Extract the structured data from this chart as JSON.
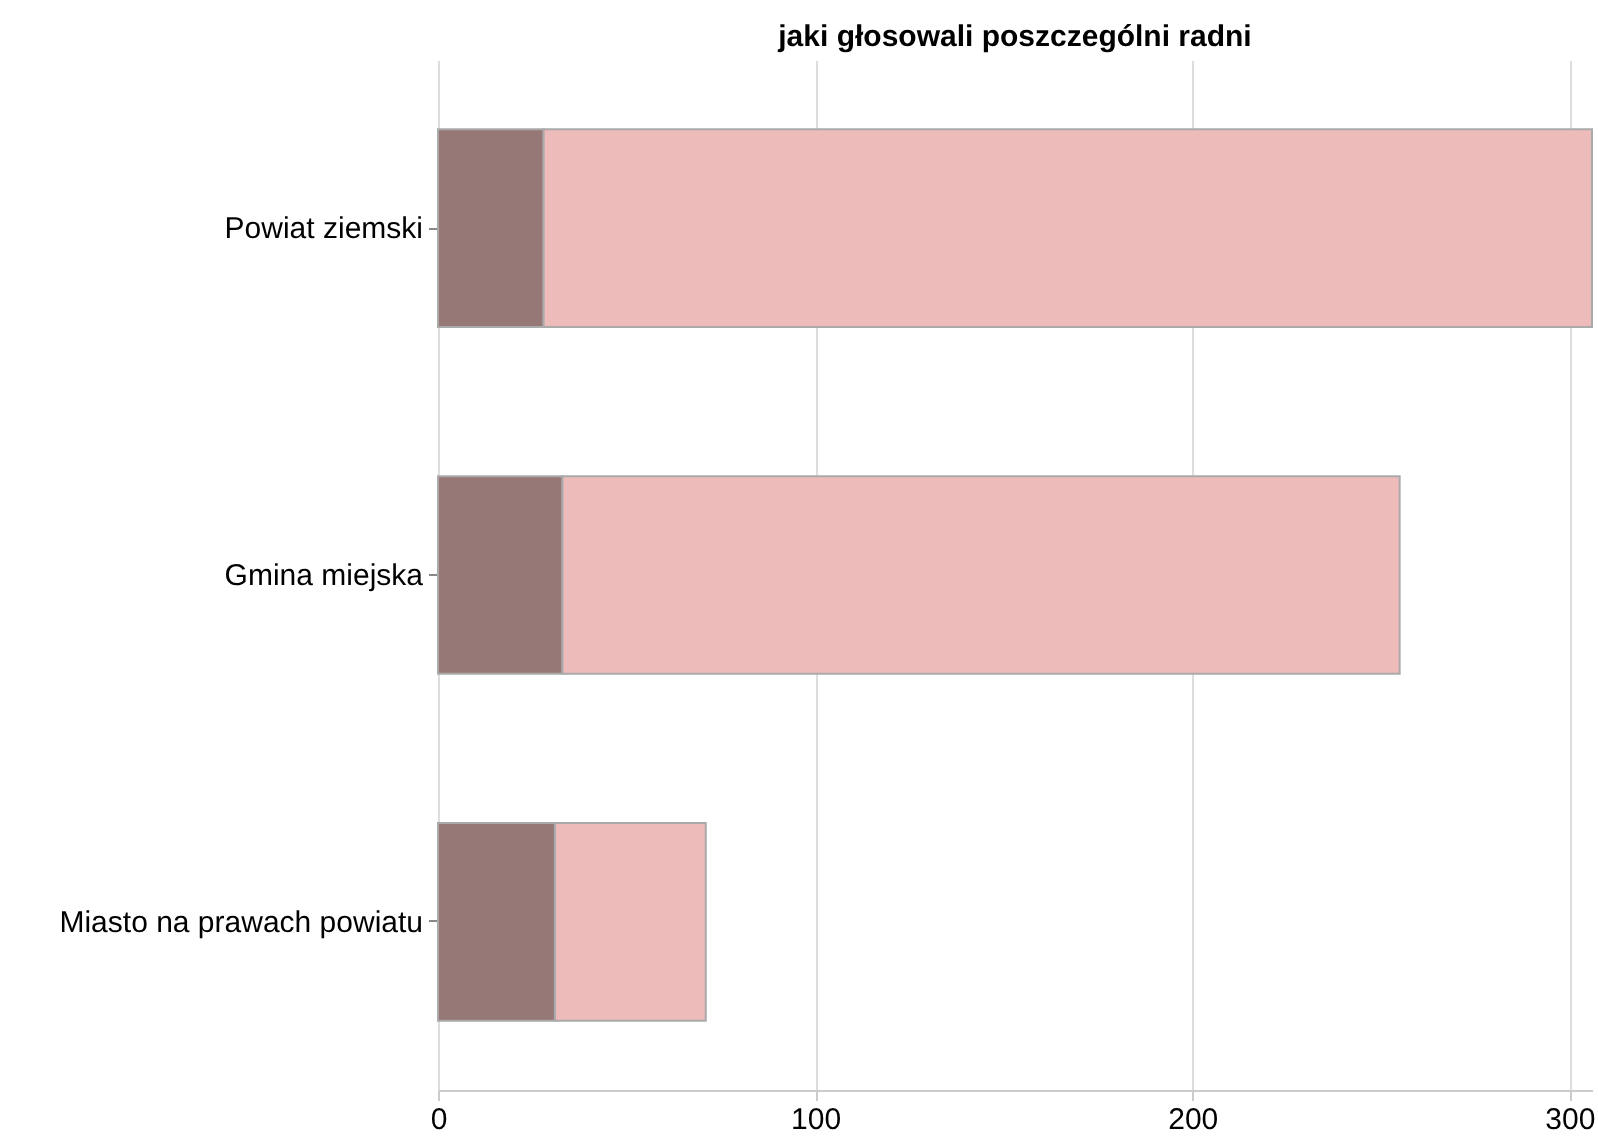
{
  "chart_data": {
    "type": "bar",
    "orientation": "horizontal",
    "stacked": true,
    "title": "jaki głosowali poszczególni radni",
    "categories": [
      "Powiat ziemski",
      "Gmina miejska",
      "Miasto na prawach powiatu"
    ],
    "series": [
      {
        "color": "#967876",
        "values": [
          28,
          33,
          31
        ]
      },
      {
        "color": "#eebbbb",
        "values": [
          278,
          222,
          40
        ]
      }
    ],
    "xlim": [
      0,
      306
    ],
    "xticks": [
      0,
      100,
      200,
      300
    ],
    "grid": "x",
    "legend": false
  }
}
